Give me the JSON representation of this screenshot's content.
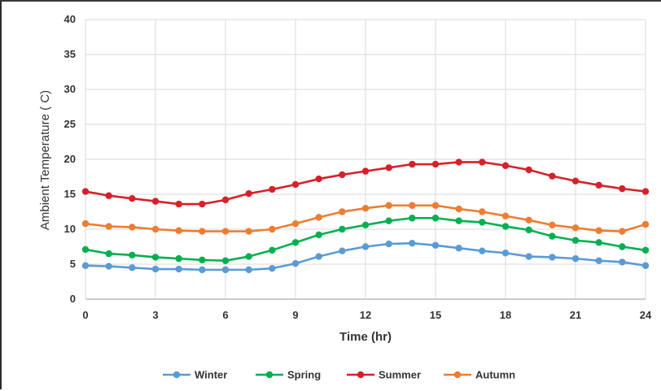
{
  "chart_data": {
    "type": "line",
    "title": "",
    "xlabel": "Time (hr)",
    "ylabel": "Ambient Temperature ( C)",
    "xlim": [
      0,
      24
    ],
    "ylim": [
      0,
      40
    ],
    "x_ticks": [
      0,
      3,
      6,
      9,
      12,
      15,
      18,
      21,
      24
    ],
    "y_ticks": [
      0,
      5,
      10,
      15,
      20,
      25,
      30,
      35,
      40
    ],
    "grid": "vertical and horizontal",
    "legend_position": "bottom",
    "x": [
      0,
      1,
      2,
      3,
      4,
      5,
      6,
      7,
      8,
      9,
      10,
      11,
      12,
      13,
      14,
      15,
      16,
      17,
      18,
      19,
      20,
      21,
      22,
      23,
      24
    ],
    "series": [
      {
        "name": "Winter",
        "color": "#5b9bd5",
        "values": [
          4.8,
          4.7,
          4.5,
          4.3,
          4.3,
          4.2,
          4.2,
          4.2,
          4.4,
          5.1,
          6.1,
          6.9,
          7.5,
          7.9,
          8.0,
          7.7,
          7.3,
          6.9,
          6.6,
          6.1,
          6.0,
          5.8,
          5.5,
          5.3,
          4.8
        ]
      },
      {
        "name": "Spring",
        "color": "#00b050",
        "values": [
          7.1,
          6.5,
          6.3,
          6.0,
          5.8,
          5.6,
          5.5,
          6.1,
          7.0,
          8.1,
          9.2,
          10.0,
          10.6,
          11.2,
          11.6,
          11.6,
          11.2,
          11.0,
          10.4,
          9.9,
          9.0,
          8.4,
          8.1,
          7.5,
          7.0
        ]
      },
      {
        "name": "Summer",
        "color": "#d6212a",
        "values": [
          15.4,
          14.8,
          14.4,
          14.0,
          13.6,
          13.6,
          14.2,
          15.1,
          15.7,
          16.4,
          17.2,
          17.8,
          18.3,
          18.8,
          19.3,
          19.3,
          19.6,
          19.6,
          19.1,
          18.5,
          17.6,
          16.9,
          16.3,
          15.8,
          15.4
        ]
      },
      {
        "name": "Autumn",
        "color": "#ed7d31",
        "values": [
          10.8,
          10.4,
          10.3,
          10.0,
          9.8,
          9.7,
          9.7,
          9.7,
          10.0,
          10.8,
          11.7,
          12.5,
          13.0,
          13.4,
          13.4,
          13.4,
          12.9,
          12.5,
          11.9,
          11.3,
          10.6,
          10.2,
          9.8,
          9.7,
          10.7
        ]
      }
    ]
  }
}
